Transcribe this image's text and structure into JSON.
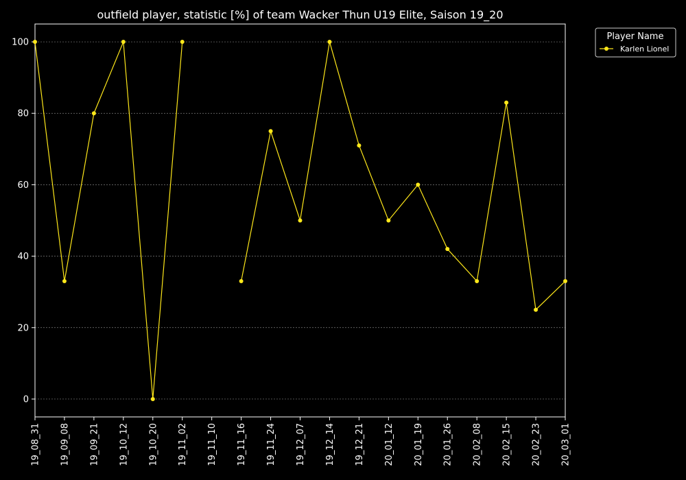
{
  "chart_data": {
    "type": "line",
    "title": "outfield player, statistic [%] of team Wacker Thun U19 Elite, Saison 19_20",
    "xlabel": "",
    "ylabel": "",
    "categories": [
      "19_08_31",
      "19_09_08",
      "19_09_21",
      "19_10_12",
      "19_10_20",
      "19_11_02",
      "19_11_10",
      "19_11_16",
      "19_11_24",
      "19_12_07",
      "19_12_14",
      "19_12_21",
      "20_01_12",
      "20_01_19",
      "20_01_26",
      "20_02_08",
      "20_02_15",
      "20_02_23",
      "20_03_01"
    ],
    "yticks": [
      0,
      20,
      40,
      60,
      80,
      100
    ],
    "ylim": [
      -5,
      105
    ],
    "grid": true,
    "legend": {
      "title": "Player Name",
      "placement": "outside-top-right"
    },
    "series": [
      {
        "name": "Karlen Lionel",
        "color": "#ffe81a",
        "values": [
          100,
          33,
          80,
          100,
          0,
          100,
          null,
          33,
          75,
          50,
          100,
          71,
          50,
          60,
          42,
          33,
          83,
          25,
          33
        ]
      }
    ]
  },
  "colors": {
    "background": "#000000",
    "axes": "#ffffff",
    "grid": "#7f7f7f"
  }
}
